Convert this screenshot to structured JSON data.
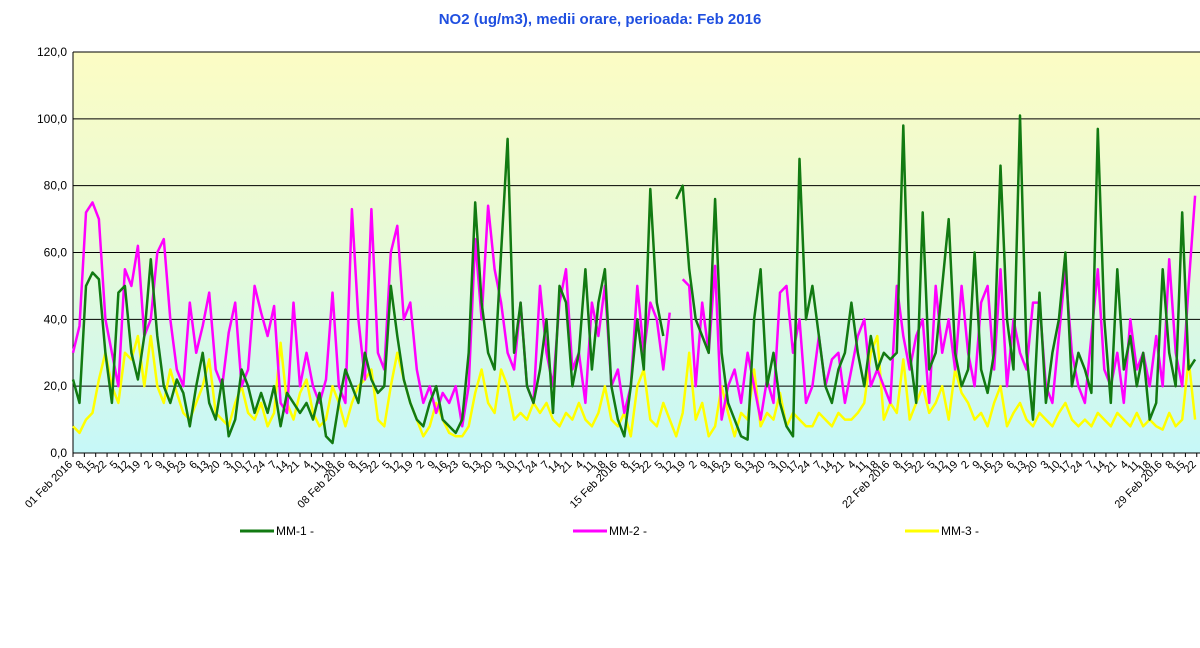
{
  "chart_data": {
    "type": "line",
    "title": "NO2 (ug/m3), medii orare, perioada:  Feb 2016",
    "grid": true,
    "legend": "bottom",
    "xlim": [
      0,
      695
    ],
    "ylim": [
      0,
      120
    ],
    "yticks": [
      {
        "value": 0,
        "label": "0,0"
      },
      {
        "value": 20,
        "label": "20,0"
      },
      {
        "value": 40,
        "label": "40,0"
      },
      {
        "value": 60,
        "label": "60,0"
      },
      {
        "value": 80,
        "label": "80,0"
      },
      {
        "value": 100,
        "label": "100,0"
      },
      {
        "value": 120,
        "label": "120,0"
      }
    ],
    "xticks": [
      {
        "value": 0,
        "label": "01 Feb 2016"
      },
      {
        "value": 7,
        "label": "8"
      },
      {
        "value": 14,
        "label": "15"
      },
      {
        "value": 21,
        "label": "22"
      },
      {
        "value": 28,
        "label": "5"
      },
      {
        "value": 35,
        "label": "12"
      },
      {
        "value": 42,
        "label": "19"
      },
      {
        "value": 49,
        "label": "2"
      },
      {
        "value": 56,
        "label": "9"
      },
      {
        "value": 63,
        "label": "16"
      },
      {
        "value": 70,
        "label": "23"
      },
      {
        "value": 77,
        "label": "6"
      },
      {
        "value": 84,
        "label": "13"
      },
      {
        "value": 91,
        "label": "20"
      },
      {
        "value": 98,
        "label": "3"
      },
      {
        "value": 105,
        "label": "10"
      },
      {
        "value": 112,
        "label": "17"
      },
      {
        "value": 119,
        "label": "24"
      },
      {
        "value": 126,
        "label": "7"
      },
      {
        "value": 133,
        "label": "14"
      },
      {
        "value": 140,
        "label": "21"
      },
      {
        "value": 147,
        "label": "4"
      },
      {
        "value": 154,
        "label": "11"
      },
      {
        "value": 161,
        "label": "18"
      },
      {
        "value": 168,
        "label": "08 Feb 2016"
      },
      {
        "value": 175,
        "label": "8"
      },
      {
        "value": 182,
        "label": "15"
      },
      {
        "value": 189,
        "label": "22"
      },
      {
        "value": 196,
        "label": "5"
      },
      {
        "value": 203,
        "label": "12"
      },
      {
        "value": 210,
        "label": "19"
      },
      {
        "value": 217,
        "label": "2"
      },
      {
        "value": 224,
        "label": "9"
      },
      {
        "value": 231,
        "label": "16"
      },
      {
        "value": 238,
        "label": "23"
      },
      {
        "value": 245,
        "label": "6"
      },
      {
        "value": 252,
        "label": "13"
      },
      {
        "value": 259,
        "label": "20"
      },
      {
        "value": 266,
        "label": "3"
      },
      {
        "value": 273,
        "label": "10"
      },
      {
        "value": 280,
        "label": "17"
      },
      {
        "value": 287,
        "label": "24"
      },
      {
        "value": 294,
        "label": "7"
      },
      {
        "value": 301,
        "label": "14"
      },
      {
        "value": 308,
        "label": "21"
      },
      {
        "value": 315,
        "label": "4"
      },
      {
        "value": 322,
        "label": "11"
      },
      {
        "value": 329,
        "label": "18"
      },
      {
        "value": 336,
        "label": "15 Feb 2016"
      },
      {
        "value": 343,
        "label": "8"
      },
      {
        "value": 350,
        "label": "15"
      },
      {
        "value": 357,
        "label": "22"
      },
      {
        "value": 364,
        "label": "5"
      },
      {
        "value": 371,
        "label": "12"
      },
      {
        "value": 378,
        "label": "19"
      },
      {
        "value": 385,
        "label": "2"
      },
      {
        "value": 392,
        "label": "9"
      },
      {
        "value": 399,
        "label": "16"
      },
      {
        "value": 406,
        "label": "23"
      },
      {
        "value": 413,
        "label": "6"
      },
      {
        "value": 420,
        "label": "13"
      },
      {
        "value": 427,
        "label": "20"
      },
      {
        "value": 434,
        "label": "3"
      },
      {
        "value": 441,
        "label": "10"
      },
      {
        "value": 448,
        "label": "17"
      },
      {
        "value": 455,
        "label": "24"
      },
      {
        "value": 462,
        "label": "7"
      },
      {
        "value": 469,
        "label": "14"
      },
      {
        "value": 476,
        "label": "21"
      },
      {
        "value": 483,
        "label": "4"
      },
      {
        "value": 490,
        "label": "11"
      },
      {
        "value": 497,
        "label": "18"
      },
      {
        "value": 504,
        "label": "22 Feb 2016"
      },
      {
        "value": 511,
        "label": "8"
      },
      {
        "value": 518,
        "label": "15"
      },
      {
        "value": 525,
        "label": "22"
      },
      {
        "value": 532,
        "label": "5"
      },
      {
        "value": 539,
        "label": "12"
      },
      {
        "value": 546,
        "label": "19"
      },
      {
        "value": 553,
        "label": "2"
      },
      {
        "value": 560,
        "label": "9"
      },
      {
        "value": 567,
        "label": "16"
      },
      {
        "value": 574,
        "label": "23"
      },
      {
        "value": 581,
        "label": "6"
      },
      {
        "value": 588,
        "label": "13"
      },
      {
        "value": 595,
        "label": "20"
      },
      {
        "value": 602,
        "label": "3"
      },
      {
        "value": 609,
        "label": "10"
      },
      {
        "value": 616,
        "label": "17"
      },
      {
        "value": 623,
        "label": "24"
      },
      {
        "value": 630,
        "label": "7"
      },
      {
        "value": 637,
        "label": "14"
      },
      {
        "value": 644,
        "label": "21"
      },
      {
        "value": 651,
        "label": "4"
      },
      {
        "value": 658,
        "label": "11"
      },
      {
        "value": 665,
        "label": "18"
      },
      {
        "value": 672,
        "label": "29 Feb 2016"
      },
      {
        "value": 679,
        "label": "8"
      },
      {
        "value": 686,
        "label": "15"
      },
      {
        "value": 693,
        "label": "22"
      }
    ],
    "x": [
      0,
      4,
      8,
      12,
      16,
      20,
      24,
      28,
      32,
      36,
      40,
      44,
      48,
      52,
      56,
      60,
      64,
      68,
      72,
      76,
      80,
      84,
      88,
      92,
      96,
      100,
      104,
      108,
      112,
      116,
      120,
      124,
      128,
      132,
      136,
      140,
      144,
      148,
      152,
      156,
      160,
      164,
      168,
      172,
      176,
      180,
      184,
      188,
      192,
      196,
      200,
      204,
      208,
      212,
      216,
      220,
      224,
      228,
      232,
      236,
      240,
      244,
      248,
      252,
      256,
      260,
      264,
      268,
      272,
      276,
      280,
      284,
      288,
      292,
      296,
      300,
      304,
      308,
      312,
      316,
      320,
      324,
      328,
      332,
      336,
      340,
      344,
      348,
      352,
      356,
      360,
      364,
      368,
      372,
      376,
      380,
      384,
      388,
      392,
      396,
      400,
      404,
      408,
      412,
      416,
      420,
      424,
      428,
      432,
      436,
      440,
      444,
      448,
      452,
      456,
      460,
      464,
      468,
      472,
      476,
      480,
      484,
      488,
      492,
      496,
      500,
      504,
      508,
      512,
      516,
      520,
      524,
      528,
      532,
      536,
      540,
      544,
      548,
      552,
      556,
      560,
      564,
      568,
      572,
      576,
      580,
      584,
      588,
      592,
      596,
      600,
      604,
      608,
      612,
      616,
      620,
      624,
      628,
      632,
      636,
      640,
      644,
      648,
      652,
      656,
      660,
      664,
      668,
      672,
      676,
      680,
      684,
      688,
      692
    ],
    "series": [
      {
        "name": "MM-1 -",
        "color": "#127a12",
        "values": [
          22,
          15,
          50,
          54,
          52,
          30,
          15,
          48,
          50,
          30,
          22,
          35,
          58,
          35,
          20,
          15,
          22,
          18,
          8,
          20,
          30,
          15,
          10,
          22,
          5,
          10,
          25,
          20,
          12,
          18,
          12,
          20,
          8,
          18,
          15,
          12,
          15,
          10,
          18,
          5,
          3,
          15,
          25,
          20,
          15,
          30,
          22,
          18,
          20,
          50,
          35,
          22,
          15,
          10,
          8,
          15,
          20,
          10,
          8,
          6,
          10,
          30,
          75,
          45,
          30,
          25,
          60,
          94,
          30,
          45,
          20,
          15,
          25,
          40,
          12,
          50,
          45,
          20,
          30,
          55,
          25,
          45,
          55,
          20,
          10,
          5,
          20,
          40,
          25,
          79,
          45,
          35,
          null,
          76,
          80,
          55,
          40,
          35,
          30,
          76,
          30,
          15,
          10,
          5,
          4,
          40,
          55,
          20,
          30,
          15,
          8,
          5,
          88,
          40,
          50,
          35,
          20,
          15,
          25,
          30,
          45,
          30,
          20,
          35,
          25,
          30,
          28,
          30,
          98,
          30,
          15,
          72,
          25,
          30,
          50,
          70,
          30,
          20,
          25,
          60,
          25,
          18,
          30,
          86,
          40,
          25,
          101,
          30,
          10,
          48,
          15,
          30,
          40,
          60,
          20,
          30,
          25,
          18,
          97,
          40,
          15,
          55,
          25,
          35,
          20,
          30,
          10,
          15,
          55,
          30,
          20,
          72,
          25,
          28
        ]
      },
      {
        "name": "MM-2 -",
        "color": "#ff00ff",
        "values": [
          30,
          38,
          72,
          75,
          70,
          40,
          30,
          20,
          55,
          50,
          62,
          35,
          40,
          60,
          64,
          40,
          25,
          20,
          45,
          30,
          38,
          48,
          25,
          20,
          36,
          45,
          20,
          25,
          50,
          42,
          35,
          44,
          15,
          12,
          45,
          20,
          30,
          20,
          15,
          22,
          48,
          20,
          15,
          73,
          40,
          22,
          73,
          30,
          25,
          60,
          68,
          40,
          45,
          25,
          15,
          20,
          12,
          18,
          15,
          20,
          8,
          20,
          64,
          40,
          74,
          55,
          45,
          30,
          25,
          45,
          20,
          15,
          50,
          30,
          20,
          45,
          55,
          25,
          30,
          15,
          45,
          35,
          50,
          20,
          25,
          12,
          20,
          50,
          30,
          45,
          40,
          25,
          42,
          null,
          52,
          50,
          20,
          45,
          30,
          56,
          10,
          20,
          25,
          15,
          30,
          20,
          10,
          22,
          15,
          48,
          50,
          30,
          40,
          15,
          20,
          35,
          20,
          28,
          30,
          15,
          25,
          35,
          40,
          20,
          25,
          20,
          15,
          50,
          35,
          25,
          35,
          40,
          15,
          50,
          30,
          40,
          25,
          50,
          30,
          20,
          45,
          50,
          25,
          55,
          20,
          40,
          30,
          25,
          45,
          45,
          20,
          15,
          35,
          55,
          30,
          20,
          15,
          35,
          55,
          25,
          20,
          30,
          15,
          40,
          25,
          30,
          20,
          35,
          20,
          58,
          30,
          20,
          50,
          77
        ]
      },
      {
        "name": "MM-3 -",
        "color": "#ffff00",
        "values": [
          8,
          6,
          10,
          12,
          22,
          30,
          20,
          15,
          30,
          28,
          35,
          20,
          35,
          20,
          15,
          25,
          18,
          12,
          10,
          15,
          20,
          28,
          12,
          10,
          8,
          15,
          20,
          12,
          10,
          15,
          8,
          12,
          33,
          15,
          10,
          18,
          22,
          12,
          8,
          10,
          20,
          15,
          8,
          15,
          20,
          22,
          25,
          10,
          8,
          20,
          30,
          22,
          15,
          10,
          5,
          8,
          15,
          10,
          6,
          5,
          5,
          8,
          18,
          25,
          15,
          12,
          25,
          20,
          10,
          12,
          10,
          15,
          12,
          15,
          10,
          8,
          12,
          10,
          15,
          10,
          8,
          12,
          20,
          10,
          8,
          12,
          5,
          20,
          25,
          10,
          8,
          15,
          10,
          5,
          12,
          30,
          10,
          15,
          5,
          8,
          20,
          12,
          5,
          12,
          10,
          25,
          8,
          12,
          10,
          18,
          8,
          12,
          10,
          8,
          8,
          12,
          10,
          8,
          12,
          10,
          10,
          12,
          15,
          30,
          35,
          10,
          15,
          12,
          28,
          10,
          15,
          20,
          12,
          15,
          20,
          10,
          25,
          18,
          15,
          10,
          12,
          8,
          15,
          20,
          8,
          12,
          15,
          10,
          8,
          12,
          10,
          8,
          12,
          15,
          10,
          8,
          10,
          8,
          12,
          10,
          8,
          12,
          10,
          8,
          12,
          8,
          10,
          8,
          7,
          12,
          8,
          10,
          28,
          10
        ]
      }
    ]
  }
}
